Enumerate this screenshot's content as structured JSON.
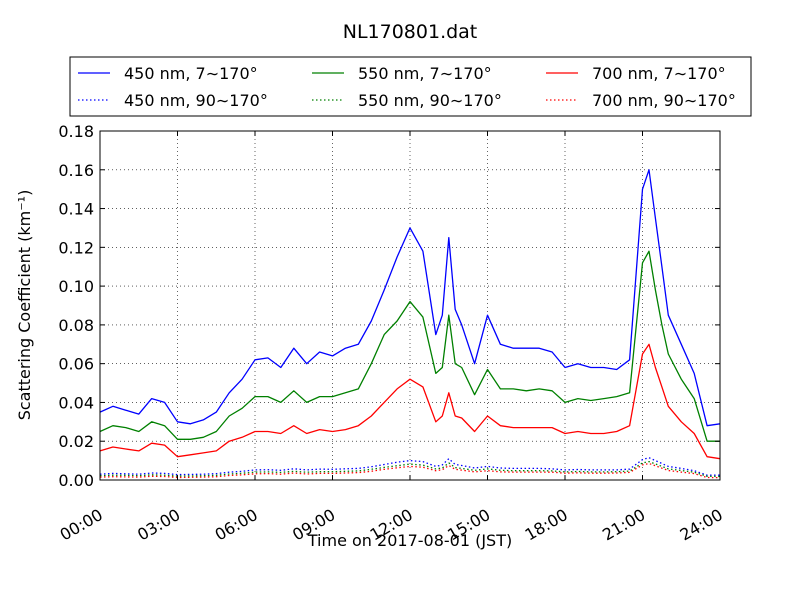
{
  "chart_data": {
    "type": "line",
    "title": "NL170801.dat",
    "xlabel": "Time on 2017-08-01 (JST)",
    "ylabel": "Scattering Coefficient (km⁻¹)",
    "xlim": [
      "00:00",
      "24:00"
    ],
    "ylim": [
      0,
      0.18
    ],
    "x_ticks": [
      "00:00",
      "03:00",
      "06:00",
      "09:00",
      "12:00",
      "15:00",
      "18:00",
      "21:00",
      "24:00"
    ],
    "y_ticks": [
      "0.00",
      "0.02",
      "0.04",
      "0.06",
      "0.08",
      "0.10",
      "0.12",
      "0.14",
      "0.16",
      "0.18"
    ],
    "grid": true,
    "legend_position": "top",
    "x": [
      "00:00",
      "00:30",
      "01:00",
      "01:30",
      "02:00",
      "02:30",
      "03:00",
      "03:30",
      "04:00",
      "04:30",
      "05:00",
      "05:30",
      "06:00",
      "06:30",
      "07:00",
      "07:30",
      "08:00",
      "08:30",
      "09:00",
      "09:30",
      "10:00",
      "10:30",
      "11:00",
      "11:30",
      "12:00",
      "12:30",
      "13:00",
      "13:15",
      "13:30",
      "13:45",
      "14:00",
      "14:30",
      "15:00",
      "15:30",
      "16:00",
      "16:30",
      "17:00",
      "17:30",
      "18:00",
      "18:30",
      "19:00",
      "19:30",
      "20:00",
      "20:30",
      "21:00",
      "21:15",
      "21:30",
      "21:45",
      "22:00",
      "22:30",
      "23:00",
      "23:30",
      "24:00"
    ],
    "series": [
      {
        "name": "450 nm, 7∼170°",
        "color": "#0000ff",
        "style": "solid",
        "values": [
          0.035,
          0.038,
          0.036,
          0.034,
          0.042,
          0.04,
          0.03,
          0.029,
          0.031,
          0.035,
          0.045,
          0.052,
          0.062,
          0.063,
          0.058,
          0.068,
          0.06,
          0.066,
          0.064,
          0.068,
          0.07,
          0.082,
          0.098,
          0.115,
          0.13,
          0.118,
          0.075,
          0.085,
          0.125,
          0.088,
          0.08,
          0.06,
          0.085,
          0.07,
          0.068,
          0.068,
          0.068,
          0.066,
          0.058,
          0.06,
          0.058,
          0.058,
          0.057,
          0.062,
          0.15,
          0.16,
          0.135,
          0.11,
          0.085,
          0.07,
          0.055,
          0.028,
          0.029
        ]
      },
      {
        "name": "550 nm, 7∼170°",
        "color": "#008000",
        "style": "solid",
        "values": [
          0.025,
          0.028,
          0.027,
          0.025,
          0.03,
          0.028,
          0.021,
          0.021,
          0.022,
          0.025,
          0.033,
          0.037,
          0.043,
          0.043,
          0.04,
          0.046,
          0.04,
          0.043,
          0.043,
          0.045,
          0.047,
          0.06,
          0.075,
          0.082,
          0.092,
          0.084,
          0.055,
          0.058,
          0.085,
          0.06,
          0.058,
          0.044,
          0.057,
          0.047,
          0.047,
          0.046,
          0.047,
          0.046,
          0.04,
          0.042,
          0.041,
          0.042,
          0.043,
          0.045,
          0.112,
          0.118,
          0.098,
          0.08,
          0.065,
          0.052,
          0.042,
          0.02,
          0.02
        ]
      },
      {
        "name": "700 nm, 7∼170°",
        "color": "#ff0000",
        "style": "solid",
        "values": [
          0.015,
          0.017,
          0.016,
          0.015,
          0.019,
          0.018,
          0.012,
          0.013,
          0.014,
          0.015,
          0.02,
          0.022,
          0.025,
          0.025,
          0.024,
          0.028,
          0.024,
          0.026,
          0.025,
          0.026,
          0.028,
          0.033,
          0.04,
          0.047,
          0.052,
          0.048,
          0.03,
          0.033,
          0.045,
          0.033,
          0.032,
          0.025,
          0.033,
          0.028,
          0.027,
          0.027,
          0.027,
          0.027,
          0.024,
          0.025,
          0.024,
          0.024,
          0.025,
          0.028,
          0.065,
          0.07,
          0.058,
          0.048,
          0.038,
          0.03,
          0.024,
          0.012,
          0.011
        ]
      },
      {
        "name": "450 nm, 90∼170°",
        "color": "#0000ff",
        "style": "dotted",
        "values": [
          0.003,
          0.0034,
          0.0032,
          0.003,
          0.0036,
          0.0034,
          0.0028,
          0.0029,
          0.003,
          0.0033,
          0.004,
          0.0045,
          0.0052,
          0.0053,
          0.005,
          0.0058,
          0.0052,
          0.0056,
          0.0055,
          0.0058,
          0.006,
          0.0068,
          0.008,
          0.0092,
          0.01,
          0.0095,
          0.007,
          0.0078,
          0.011,
          0.008,
          0.0075,
          0.0062,
          0.007,
          0.0062,
          0.006,
          0.006,
          0.006,
          0.0058,
          0.0052,
          0.0054,
          0.0052,
          0.0052,
          0.0052,
          0.0056,
          0.0105,
          0.0115,
          0.01,
          0.0085,
          0.007,
          0.006,
          0.0048,
          0.0025,
          0.0025
        ]
      },
      {
        "name": "550 nm, 90∼170°",
        "color": "#008000",
        "style": "dotted",
        "values": [
          0.0022,
          0.0025,
          0.0024,
          0.0022,
          0.0027,
          0.0025,
          0.002,
          0.0021,
          0.0022,
          0.0024,
          0.0031,
          0.0035,
          0.0041,
          0.0042,
          0.0039,
          0.0045,
          0.004,
          0.0043,
          0.0043,
          0.0045,
          0.0047,
          0.0055,
          0.0065,
          0.0074,
          0.0082,
          0.0077,
          0.0057,
          0.0062,
          0.0088,
          0.0064,
          0.006,
          0.005,
          0.0057,
          0.005,
          0.0048,
          0.0048,
          0.0048,
          0.0047,
          0.0042,
          0.0044,
          0.0042,
          0.0042,
          0.0043,
          0.0046,
          0.0088,
          0.0095,
          0.0083,
          0.007,
          0.0057,
          0.0049,
          0.004,
          0.0019,
          0.0018
        ]
      },
      {
        "name": "700 nm, 90∼170°",
        "color": "#ff0000",
        "style": "dotted",
        "values": [
          0.0015,
          0.0017,
          0.0016,
          0.0015,
          0.0019,
          0.0018,
          0.0013,
          0.0014,
          0.0015,
          0.0017,
          0.0023,
          0.0027,
          0.0032,
          0.0033,
          0.003,
          0.0036,
          0.0031,
          0.0034,
          0.0034,
          0.0036,
          0.0038,
          0.0045,
          0.0055,
          0.0063,
          0.007,
          0.0066,
          0.0048,
          0.0053,
          0.0075,
          0.0055,
          0.0051,
          0.0042,
          0.0048,
          0.0042,
          0.0041,
          0.0041,
          0.0041,
          0.004,
          0.0035,
          0.0037,
          0.0035,
          0.0035,
          0.0036,
          0.0039,
          0.0078,
          0.0085,
          0.0073,
          0.0061,
          0.0049,
          0.0041,
          0.0033,
          0.0013,
          0.0012
        ]
      }
    ]
  }
}
